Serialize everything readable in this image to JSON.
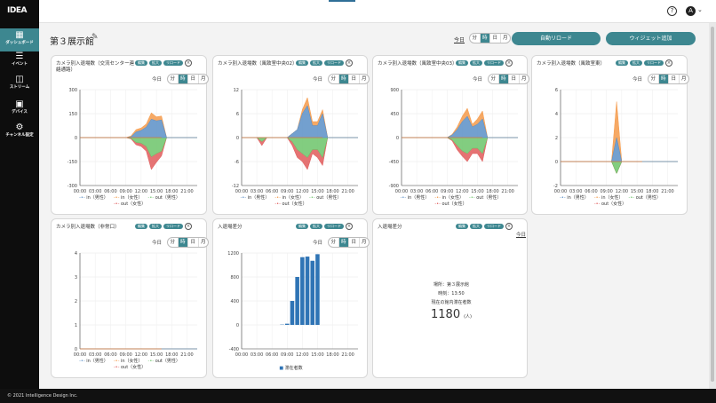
{
  "app": {
    "logo": "IDEA",
    "footer": "© 2021 Intelligence Design Inc.",
    "avatar": "A"
  },
  "sidebar": [
    {
      "label": "ダッシュボード",
      "icon": "grid"
    },
    {
      "label": "イベント",
      "icon": "list"
    },
    {
      "label": "ストリーム",
      "icon": "database"
    },
    {
      "label": "デバイス",
      "icon": "camera"
    },
    {
      "label": "チャンネル設定",
      "icon": "gear"
    }
  ],
  "header": {
    "title": "第３展示館",
    "today": "今日",
    "units": [
      "分",
      "時",
      "日",
      "月"
    ],
    "active_unit": "時",
    "auto_reload": "自動リロード",
    "add_widget": "ウィジェット追加"
  },
  "card_buttons": {
    "edit": "編集",
    "expand": "拡大",
    "reload": "リロード"
  },
  "legend": {
    "in_m": "in（男性）",
    "in_f": "in（女性）",
    "out_m": "out（男性）",
    "out_f": "out（女性）",
    "present": "滞在者数"
  },
  "colors": {
    "accent": "#3d8790",
    "in_m": "#5b8fc7",
    "in_f": "#f59a4a",
    "out_m": "#6cc46a",
    "out_f": "#e05a5a",
    "bar": "#2f74b5"
  },
  "x_ticks": [
    "00:00",
    "03:00",
    "06:00",
    "09:00",
    "12:00",
    "15:00",
    "18:00",
    "21:00"
  ],
  "cards": [
    {
      "title": "カメラ別入退場数（交流センター連絡通路）",
      "type": "area",
      "ymin": -300,
      "ymax": 300,
      "yticks": [
        "300",
        "150",
        "0",
        "-150",
        "-300"
      ],
      "ytv": [
        300,
        150,
        0,
        -150,
        -300
      ],
      "series": {
        "in_m": [
          0,
          0,
          0,
          0,
          0,
          0,
          0,
          0,
          0,
          0,
          5,
          35,
          45,
          65,
          115,
          105,
          110,
          0,
          0,
          0,
          0,
          0,
          0,
          0
        ],
        "in_f": [
          0,
          0,
          0,
          0,
          0,
          0,
          0,
          0,
          0,
          0,
          5,
          15,
          15,
          20,
          40,
          25,
          25,
          0,
          0,
          0,
          0,
          0,
          0,
          0
        ],
        "out_m": [
          0,
          0,
          0,
          0,
          0,
          0,
          0,
          0,
          0,
          0,
          -5,
          -30,
          -35,
          -55,
          -120,
          -100,
          -85,
          0,
          0,
          0,
          0,
          0,
          0,
          0
        ],
        "out_f": [
          0,
          0,
          0,
          0,
          0,
          0,
          0,
          0,
          0,
          0,
          -3,
          -15,
          -20,
          -30,
          -80,
          -55,
          -30,
          0,
          0,
          0,
          0,
          0,
          0,
          0
        ]
      }
    },
    {
      "title": "カメラ別入退場数（風致室中央02）",
      "type": "area",
      "ymin": -12,
      "ymax": 12,
      "yticks": [
        "12",
        "6",
        "0",
        "-6",
        "-12"
      ],
      "ytv": [
        12,
        6,
        0,
        -6,
        -12
      ],
      "series": {
        "in_m": [
          0,
          0,
          0,
          0,
          0,
          0,
          0,
          0,
          0,
          0,
          1,
          2,
          6,
          8,
          3,
          3,
          6,
          0,
          0,
          0,
          0,
          0,
          0,
          0
        ],
        "in_f": [
          0,
          0,
          0,
          0,
          0,
          0,
          0,
          0,
          0,
          0,
          0,
          0,
          1,
          2,
          1,
          1,
          1,
          0,
          0,
          0,
          0,
          0,
          0,
          0
        ],
        "out_m": [
          0,
          0,
          0,
          0,
          -1,
          0,
          0,
          0,
          0,
          0,
          -1,
          -3,
          -4,
          -5,
          -3,
          -3,
          -5,
          0,
          0,
          0,
          0,
          0,
          0,
          0
        ],
        "out_f": [
          0,
          0,
          0,
          0,
          -1,
          0,
          0,
          0,
          0,
          0,
          -1,
          -2,
          -2,
          -3,
          -1,
          -2,
          -2,
          0,
          0,
          0,
          0,
          0,
          0,
          0
        ]
      }
    },
    {
      "title": "カメラ別入退場数（風致室中央03）",
      "type": "area",
      "ymin": -900,
      "ymax": 900,
      "yticks": [
        "900",
        "450",
        "0",
        "-450",
        "-900"
      ],
      "ytv": [
        900,
        450,
        0,
        -450,
        -900
      ],
      "series": {
        "in_m": [
          0,
          0,
          0,
          0,
          0,
          0,
          0,
          0,
          0,
          0,
          50,
          150,
          300,
          400,
          200,
          250,
          350,
          0,
          0,
          0,
          0,
          0,
          0,
          0
        ],
        "in_f": [
          0,
          0,
          0,
          0,
          0,
          0,
          0,
          0,
          0,
          0,
          10,
          50,
          100,
          150,
          50,
          100,
          150,
          0,
          0,
          0,
          0,
          0,
          0,
          0
        ],
        "out_m": [
          0,
          0,
          0,
          0,
          0,
          0,
          0,
          0,
          0,
          0,
          -40,
          -150,
          -250,
          -300,
          -200,
          -200,
          -300,
          0,
          0,
          0,
          0,
          0,
          0,
          0
        ],
        "out_f": [
          0,
          0,
          0,
          0,
          0,
          0,
          0,
          0,
          0,
          0,
          -20,
          -80,
          -100,
          -150,
          -100,
          -100,
          -150,
          0,
          0,
          0,
          0,
          0,
          0,
          0
        ]
      }
    },
    {
      "title": "カメラ別入退場数（風致室東）",
      "type": "area",
      "ymin": -2,
      "ymax": 6,
      "yticks": [
        "6",
        "4",
        "2",
        "0",
        "-2"
      ],
      "ytv": [
        6,
        4,
        2,
        0,
        -2
      ],
      "series": {
        "in_m": [
          0,
          0,
          0,
          0,
          0,
          0,
          0,
          0,
          0,
          0,
          0,
          2,
          0,
          0,
          0,
          0,
          0,
          0,
          0,
          0,
          0,
          0,
          0,
          0
        ],
        "in_f": [
          0,
          0,
          0,
          0,
          0,
          0,
          0,
          0,
          0,
          0,
          0,
          3,
          0,
          0,
          0,
          0,
          0,
          0,
          0,
          0,
          0,
          0,
          0,
          0
        ],
        "out_m": [
          0,
          0,
          0,
          0,
          0,
          0,
          0,
          0,
          0,
          0,
          0,
          -1,
          0,
          0,
          0,
          0,
          0,
          0,
          0,
          0,
          0,
          0,
          0,
          0
        ],
        "out_f": [
          0,
          0,
          0,
          0,
          0,
          0,
          0,
          0,
          0,
          0,
          0,
          0,
          0,
          0,
          0,
          0,
          0,
          0,
          0,
          0,
          0,
          0,
          0,
          0
        ]
      }
    },
    {
      "title": "カメラ別入退場数（非常口）",
      "type": "area",
      "ymin": 0,
      "ymax": 4,
      "yticks": [
        "4",
        "3",
        "2",
        "1",
        "0"
      ],
      "ytv": [
        4,
        3,
        2,
        1,
        0
      ],
      "series": {
        "in_m": [
          0,
          0,
          0,
          0,
          0,
          0,
          0,
          0,
          0,
          0,
          0,
          0,
          0,
          0,
          0,
          0,
          0,
          0,
          0,
          0,
          0,
          0,
          0,
          0
        ],
        "in_f": [
          0,
          0,
          0,
          0,
          0,
          0,
          0,
          0,
          0,
          0,
          0,
          0,
          0,
          0,
          0,
          0,
          0,
          0,
          0,
          0,
          0,
          0,
          0,
          0
        ],
        "out_m": [
          0,
          0,
          0,
          0,
          0,
          0,
          0,
          0,
          0,
          0,
          0,
          0,
          0,
          0,
          0,
          0,
          0,
          0,
          0,
          0,
          0,
          0,
          0,
          0
        ],
        "out_f": [
          0,
          0,
          0,
          0,
          0,
          0,
          0,
          0,
          0,
          0,
          0,
          0,
          0,
          0,
          0,
          0,
          0,
          0,
          0,
          0,
          0,
          0,
          0,
          0
        ]
      }
    },
    {
      "title": "入退場差分",
      "type": "bar",
      "ymin": -400,
      "ymax": 1200,
      "yticks": [
        "1200",
        "800",
        "400",
        "0",
        "-400"
      ],
      "ytv": [
        1200,
        800,
        400,
        0,
        -400
      ],
      "bars": [
        0,
        0,
        0,
        0,
        0,
        0,
        0,
        0,
        5,
        20,
        400,
        800,
        1130,
        1140,
        1070,
        1180,
        0,
        0,
        0,
        0,
        0,
        0,
        0,
        0
      ]
    },
    {
      "title": "入退場差分",
      "type": "info",
      "location": "場所：第３展示館",
      "time": "時刻：13:50",
      "present_label": "現在の館内滞在者数",
      "count": "1180",
      "unit": "(人)"
    }
  ]
}
